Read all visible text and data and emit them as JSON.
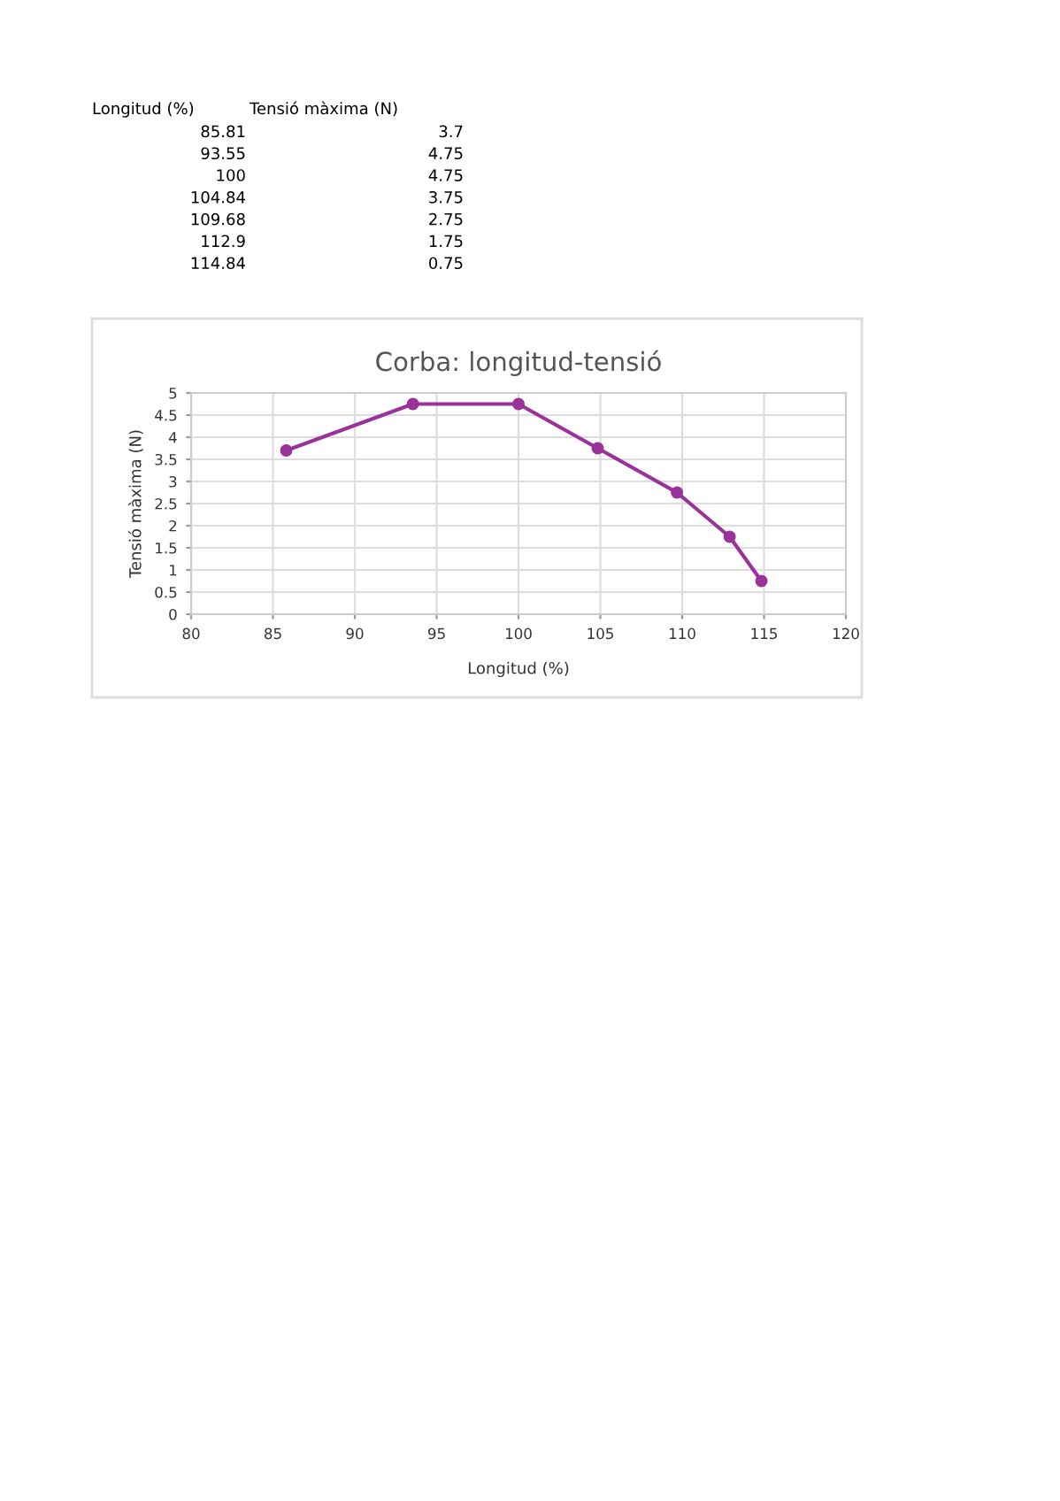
{
  "chart_data": [
    {
      "type": "other",
      "annotations": [
        "Longitud (%)",
        "Tensió màxima (N)",
        "85.81",
        "3.7",
        "93.55",
        "4.75",
        "100",
        "4.75",
        "104.84",
        "3.75",
        "109.68",
        "2.75",
        "112.9",
        "1.75",
        "114.84",
        "0.75"
      ]
    },
    {
      "type": "line",
      "title": "Corba: longitud-tensió",
      "xlabel": "Longitud (%)",
      "ylabel": "Tensió màxima (N)",
      "x": [
        85.81,
        93.55,
        100,
        104.84,
        109.68,
        112.9,
        114.84
      ],
      "series": [
        {
          "color": "#993399",
          "values": [
            3.7,
            4.75,
            4.75,
            3.75,
            2.75,
            1.75,
            0.75
          ]
        }
      ],
      "xlim": [
        80,
        120
      ],
      "xticks": [
        80,
        85,
        90,
        95,
        100,
        105,
        110,
        115,
        120
      ],
      "ylim": [
        0,
        5
      ],
      "yticks": [
        0,
        0.5,
        1,
        1.5,
        2,
        2.5,
        3,
        3.5,
        4,
        4.5,
        5
      ],
      "grid": true,
      "marker": "circle",
      "line_style": "solid"
    }
  ]
}
